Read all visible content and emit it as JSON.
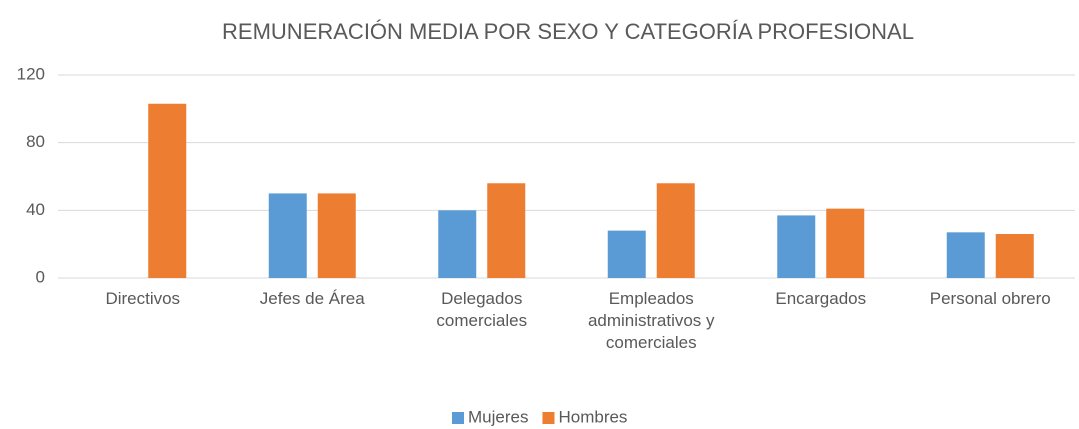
{
  "chart_data": {
    "type": "bar",
    "title": "REMUNERACIÓN MEDIA POR SEXO Y CATEGORÍA PROFESIONAL",
    "categories": [
      "Directivos",
      "Jefes de Área",
      "Delegados comerciales",
      "Empleados administrativos y comerciales",
      "Encargados",
      "Personal obrero"
    ],
    "series": [
      {
        "name": "Mujeres",
        "color": "#5b9bd5",
        "values": [
          0,
          50,
          40,
          28,
          37,
          27
        ]
      },
      {
        "name": "Hombres",
        "color": "#ed7d31",
        "values": [
          103,
          50,
          56,
          56,
          41,
          26
        ]
      }
    ],
    "ylim": [
      0,
      120
    ],
    "yticks": [
      0,
      40,
      80,
      120
    ],
    "grid": true,
    "legend": "bottom"
  }
}
